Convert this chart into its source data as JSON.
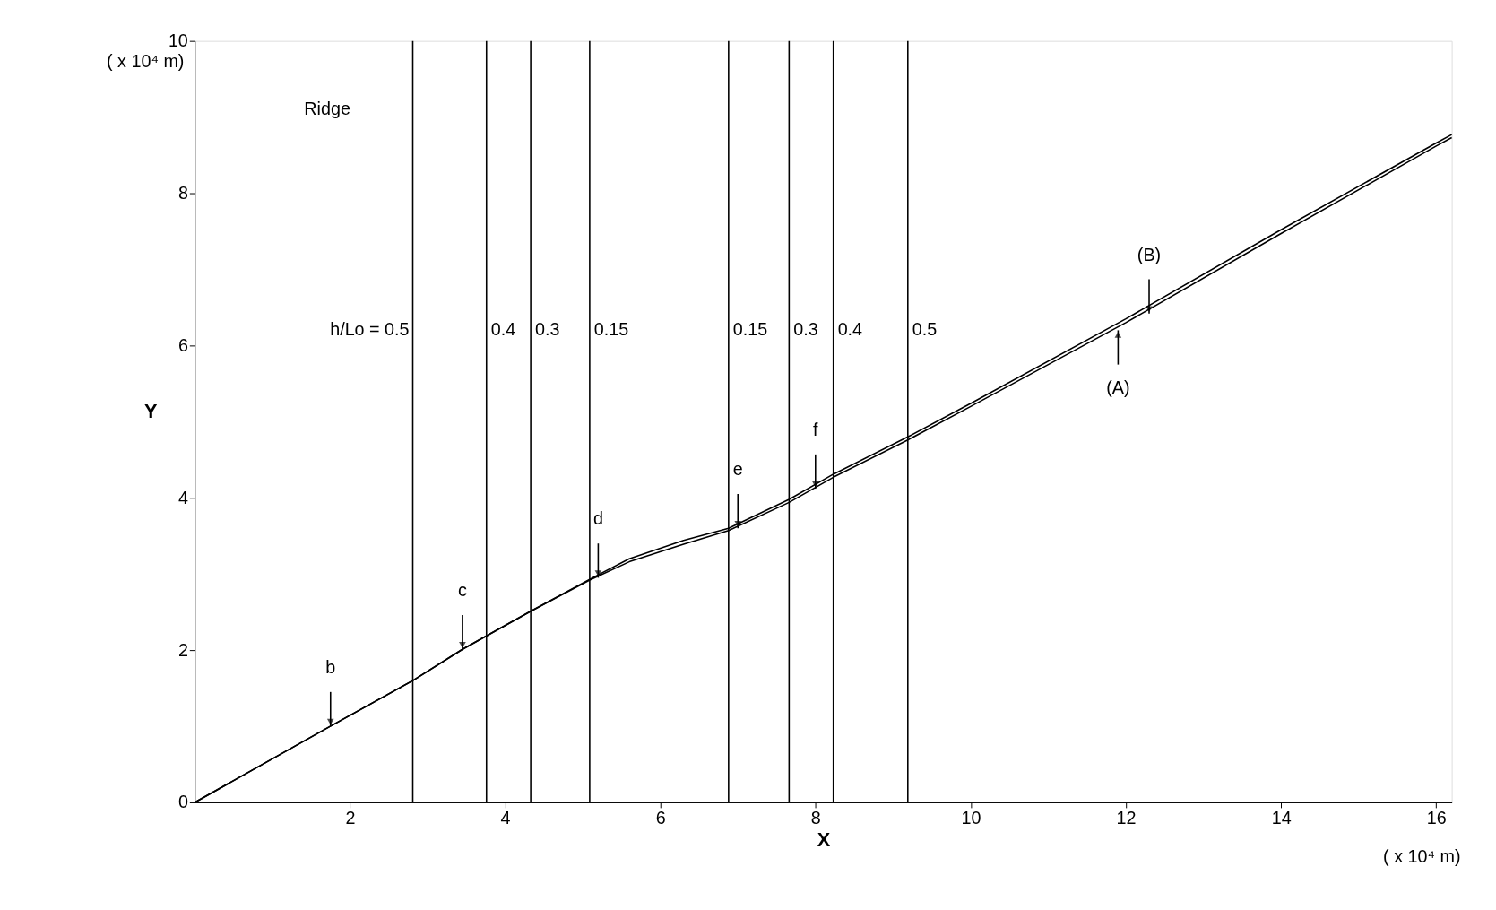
{
  "chart_data": {
    "type": "line",
    "xlabel": "X",
    "ylabel": "Y",
    "xlim": [
      0,
      16.2
    ],
    "ylim": [
      0,
      10
    ],
    "xticks": [
      2,
      4,
      6,
      8,
      10,
      12,
      14,
      16
    ],
    "yticks": [
      0,
      2,
      4,
      6,
      8,
      10
    ],
    "grid": false,
    "marker": "none",
    "line_style": "solid",
    "series": [
      {
        "color": "#000000",
        "x": [
          0,
          1.73,
          2.81,
          3.45,
          4.33,
          5.09,
          5.6,
          6.3,
          6.88,
          7.66,
          8.23,
          9.19,
          10,
          12,
          14,
          16,
          16.2
        ],
        "values": [
          0,
          0.99,
          1.6,
          2.01,
          2.51,
          2.92,
          3.16,
          3.39,
          3.57,
          3.94,
          4.27,
          4.76,
          5.2,
          6.3,
          7.47,
          8.62,
          8.73
        ]
      },
      {
        "color": "#000000",
        "x": [
          0,
          1.73,
          2.81,
          3.45,
          4.33,
          5.09,
          5.6,
          6.3,
          6.88,
          7.66,
          8.23,
          9.19,
          10,
          12,
          14,
          16,
          16.2
        ],
        "values": [
          0,
          0.99,
          1.6,
          2.01,
          2.51,
          2.93,
          3.2,
          3.44,
          3.6,
          3.98,
          4.31,
          4.8,
          5.24,
          6.35,
          7.52,
          8.66,
          8.77
        ]
      }
    ],
    "ref_lines": [
      {
        "axis": "x",
        "value": 2.81
      },
      {
        "axis": "x",
        "value": 3.76
      },
      {
        "axis": "x",
        "value": 4.33
      },
      {
        "axis": "x",
        "value": 5.09
      },
      {
        "axis": "x",
        "value": 6.88
      },
      {
        "axis": "x",
        "value": 7.66
      },
      {
        "axis": "x",
        "value": 8.23
      },
      {
        "axis": "x",
        "value": 9.19
      }
    ],
    "annotations": [
      "Ridge",
      "( x 10⁴ m)",
      "( x 10⁴ m)",
      {
        "text": "h/Lo = 0.5",
        "x": 2.81,
        "y": 6.2
      },
      {
        "text": "0.4",
        "x": 3.76,
        "y": 6.2
      },
      {
        "text": "0.3",
        "x": 4.33,
        "y": 6.2
      },
      {
        "text": "0.15",
        "x": 5.09,
        "y": 6.2
      },
      {
        "text": "0.15",
        "x": 6.88,
        "y": 6.2
      },
      {
        "text": "0.3",
        "x": 7.66,
        "y": 6.2
      },
      {
        "text": "0.4",
        "x": 8.23,
        "y": 6.2
      },
      {
        "text": "0.5",
        "x": 9.19,
        "y": 6.2
      },
      {
        "text": "b",
        "x": 1.75,
        "y": 1.0
      },
      {
        "text": "c",
        "x": 3.45,
        "y": 2.01
      },
      {
        "text": "d",
        "x": 5.2,
        "y": 2.95
      },
      {
        "text": "e",
        "x": 7.0,
        "y": 3.6
      },
      {
        "text": "f",
        "x": 8.0,
        "y": 4.12
      },
      {
        "text": "(B)",
        "x": 12.3,
        "y": 6.42
      },
      {
        "text": "(A)",
        "x": 11.9,
        "y": 6.2
      }
    ]
  }
}
